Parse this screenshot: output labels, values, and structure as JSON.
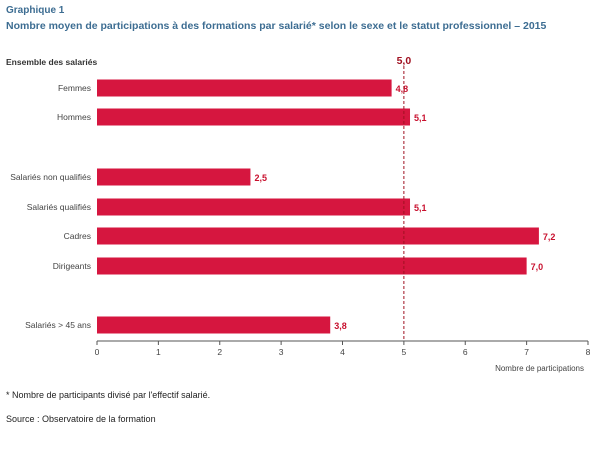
{
  "header": {
    "label": "Graphique 1",
    "title": "Nombre moyen de participations à des formations par salarié* selon le sexe et le statut professionnel – 2015",
    "group_label": "Ensemble des salariés"
  },
  "notes": {
    "footnote": "* Nombre de participants divisé par l'effectif salarié.",
    "source": "Source : Observatoire de la formation"
  },
  "colors": {
    "bar": "#d6163f",
    "label": "#c8102e",
    "axis": "#555555",
    "reference": "#a01020"
  },
  "chart_data": {
    "type": "bar",
    "orientation": "horizontal",
    "title": "Nombre moyen de participations à des formations par salarié* selon le sexe et le statut professionnel – 2015",
    "xlabel": "Nombre de participations",
    "ylabel": "",
    "xlim": [
      0,
      8
    ],
    "x_ticks": [
      "0",
      "1",
      "2",
      "3",
      "4",
      "5",
      "6",
      "7",
      "8"
    ],
    "categories": [
      "Femmes",
      "Hommes",
      "Salariés non qualifiés",
      "Salariés qualifiés",
      "Cadres",
      "Dirigeants",
      "Salariés > 45 ans"
    ],
    "values": [
      4.8,
      5.1,
      2.5,
      5.1,
      7.2,
      7.0,
      3.8
    ],
    "value_labels": [
      "4,8",
      "5,1",
      "2,5",
      "5,1",
      "7,2",
      "7,0",
      "3,8"
    ],
    "reference_line": {
      "value": 5.0,
      "label": "5,0",
      "style": "dashed"
    },
    "grid": false,
    "legend": "none"
  }
}
